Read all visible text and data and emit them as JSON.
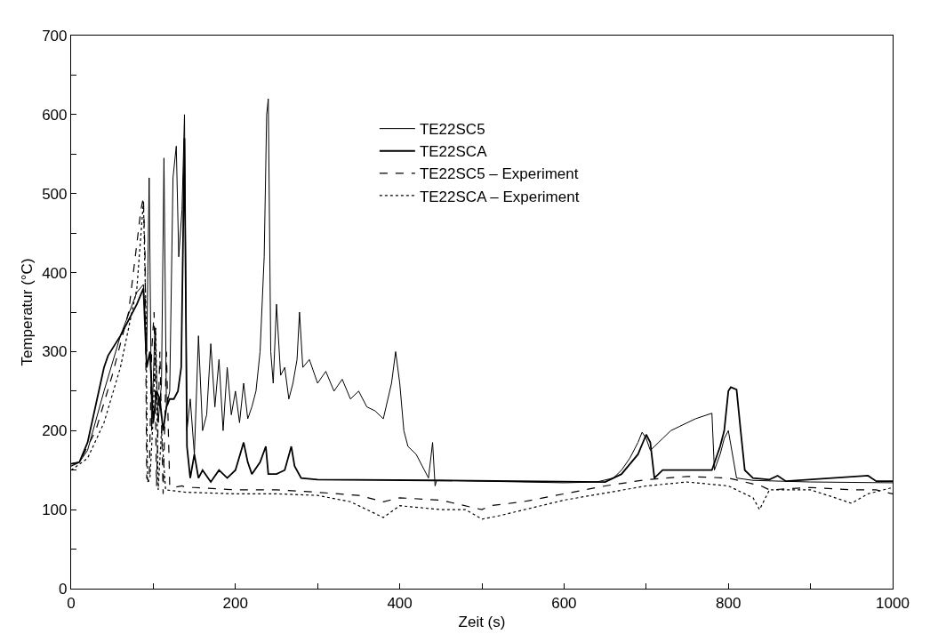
{
  "chart_data": {
    "type": "line",
    "xlabel": "Zeit (s)",
    "ylabel": "Temperatur (°C)",
    "xlim": [
      0,
      1000
    ],
    "ylim": [
      0,
      700
    ],
    "xticks": [
      0,
      {
        "value": 100,
        "label": null
      },
      200,
      {
        "value": 300,
        "label": null
      },
      400,
      {
        "value": 500,
        "label": null
      },
      600,
      {
        "value": 700,
        "label": null
      },
      800,
      {
        "value": 900,
        "label": null
      },
      1000
    ],
    "yticks": [
      0,
      {
        "value": 50,
        "label": null
      },
      100,
      {
        "value": 150,
        "label": null
      },
      200,
      {
        "value": 250,
        "label": null
      },
      300,
      {
        "value": 350,
        "label": null
      },
      400,
      {
        "value": 450,
        "label": null
      },
      500,
      {
        "value": 550,
        "label": null
      },
      600,
      {
        "value": 650,
        "label": null
      },
      700
    ],
    "legend": "top",
    "marker": "none",
    "series": [
      {
        "name": "TE22SC5",
        "color": "#000000",
        "line_style": "solid",
        "x": [
          0,
          10,
          20,
          40,
          60,
          80,
          88,
          92,
          95,
          98,
          102,
          106,
          110,
          113,
          116,
          120,
          124,
          128,
          131,
          135,
          138,
          141,
          145,
          150,
          155,
          160,
          165,
          170,
          175,
          180,
          185,
          190,
          195,
          200,
          205,
          210,
          215,
          220,
          225,
          230,
          235,
          238,
          240,
          243,
          246,
          250,
          255,
          260,
          265,
          270,
          275,
          278,
          282,
          290,
          300,
          310,
          320,
          330,
          340,
          350,
          360,
          370,
          380,
          390,
          395,
          400,
          405,
          410,
          420,
          430,
          435,
          440,
          443,
          445,
          500,
          600,
          640,
          660,
          670,
          680,
          690,
          695,
          700,
          705,
          710,
          720,
          730,
          740,
          760,
          780,
          783,
          790,
          795,
          800,
          810,
          830,
          900,
          1000
        ],
        "values": [
          158,
          160,
          175,
          250,
          320,
          375,
          385,
          300,
          520,
          200,
          330,
          210,
          260,
          545,
          230,
          250,
          520,
          560,
          420,
          480,
          600,
          200,
          240,
          170,
          320,
          200,
          220,
          310,
          230,
          290,
          200,
          280,
          220,
          250,
          210,
          260,
          215,
          230,
          250,
          300,
          420,
          600,
          620,
          300,
          260,
          360,
          270,
          280,
          240,
          260,
          290,
          350,
          280,
          290,
          260,
          275,
          250,
          265,
          240,
          250,
          230,
          225,
          215,
          260,
          300,
          260,
          200,
          180,
          170,
          150,
          140,
          185,
          130,
          137,
          136,
          134,
          135,
          140,
          150,
          165,
          185,
          198,
          190,
          175,
          180,
          190,
          200,
          205,
          215,
          222,
          150,
          170,
          190,
          200,
          140,
          137,
          135,
          134
        ]
      },
      {
        "name": "TE22SCA",
        "color": "#000000",
        "line_style": "solid",
        "x": [
          0,
          10,
          20,
          40,
          45,
          60,
          80,
          88,
          92,
          96,
          100,
          104,
          108,
          112,
          116,
          120,
          125,
          130,
          134,
          138,
          141,
          145,
          150,
          155,
          160,
          170,
          180,
          190,
          200,
          210,
          215,
          220,
          230,
          237,
          240,
          250,
          260,
          268,
          272,
          280,
          300,
          440,
          650,
          670,
          690,
          700,
          705,
          710,
          720,
          740,
          780,
          790,
          795,
          800,
          803,
          810,
          815,
          820,
          830,
          850,
          860,
          870,
          970,
          980,
          1000
        ],
        "values": [
          158,
          160,
          185,
          280,
          295,
          320,
          360,
          380,
          280,
          300,
          210,
          250,
          240,
          200,
          230,
          240,
          240,
          250,
          280,
          570,
          180,
          140,
          170,
          140,
          150,
          135,
          150,
          140,
          150,
          185,
          160,
          145,
          160,
          180,
          145,
          145,
          150,
          180,
          155,
          140,
          138,
          137,
          135,
          145,
          170,
          195,
          185,
          140,
          150,
          150,
          150,
          180,
          200,
          250,
          255,
          252,
          200,
          150,
          140,
          138,
          143,
          136,
          143,
          136,
          136
        ]
      },
      {
        "name": "TE22SC5 – Experiment",
        "color": "#000000",
        "line_style": "dashed",
        "x": [
          0,
          10,
          30,
          50,
          70,
          85,
          88,
          90,
          92,
          95,
          98,
          101,
          104,
          108,
          112,
          116,
          120,
          125,
          135,
          140,
          150,
          200,
          250,
          300,
          350,
          380,
          400,
          450,
          500,
          510,
          550,
          600,
          650,
          700,
          750,
          800,
          840,
          850,
          900,
          950,
          980,
          1000
        ],
        "values": [
          155,
          160,
          200,
          270,
          350,
          480,
          495,
          420,
          140,
          135,
          300,
          350,
          130,
          300,
          120,
          300,
          130,
          128,
          130,
          128,
          128,
          125,
          125,
          122,
          118,
          110,
          115,
          112,
          100,
          105,
          110,
          120,
          130,
          138,
          142,
          140,
          130,
          125,
          128,
          125,
          125,
          120
        ]
      },
      {
        "name": "TE22SCA – Experiment",
        "color": "#000000",
        "line_style": "dotted",
        "x": [
          0,
          20,
          40,
          60,
          80,
          88,
          91,
          93,
          96,
          100,
          103,
          106,
          110,
          115,
          140,
          200,
          250,
          300,
          340,
          360,
          380,
          400,
          450,
          480,
          500,
          520,
          600,
          700,
          750,
          800,
          830,
          838,
          850,
          900,
          930,
          950,
          970,
          1000
        ],
        "values": [
          150,
          165,
          210,
          280,
          380,
          490,
          350,
          135,
          140,
          220,
          330,
          125,
          200,
          125,
          122,
          120,
          120,
          118,
          110,
          100,
          90,
          105,
          100,
          100,
          88,
          92,
          112,
          130,
          135,
          130,
          115,
          100,
          125,
          125,
          115,
          108,
          120,
          128
        ]
      }
    ]
  }
}
